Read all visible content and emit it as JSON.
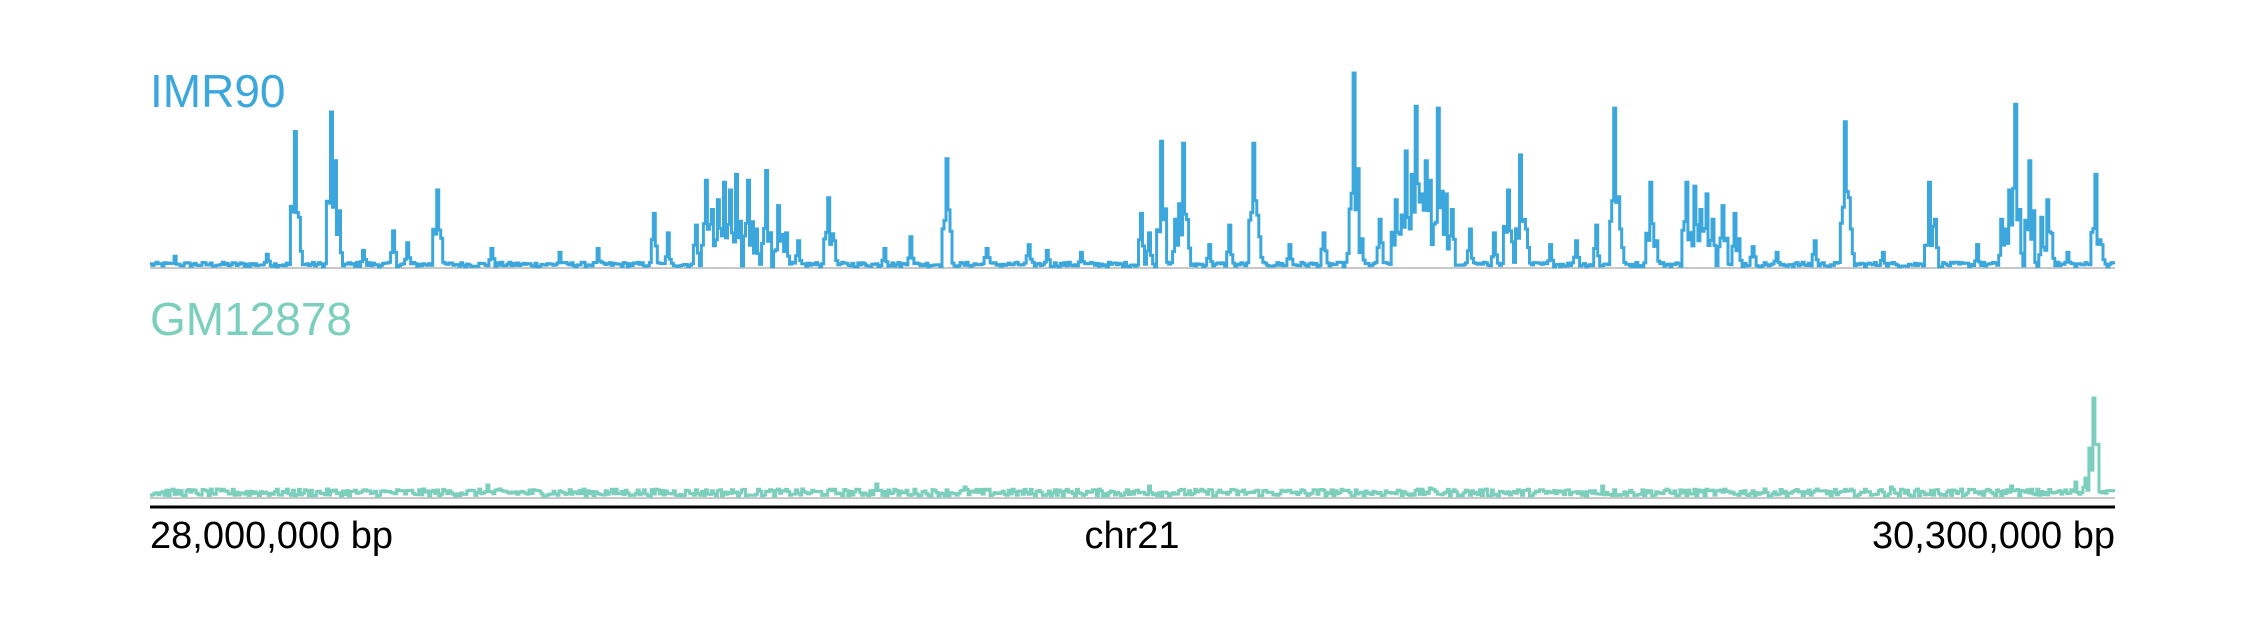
{
  "chart_data": {
    "type": "line",
    "title": "",
    "chromosome": "chr21",
    "x_range_bp": [
      28000000,
      30300000
    ],
    "x_tick_labels": [
      "28,000,000 bp",
      "chr21",
      "30,300,000 bp"
    ],
    "grid": false,
    "tracks": [
      {
        "name": "IMR90",
        "color": "#3ba7dc",
        "baseline_color": "#c8c8c8",
        "y_max": 1.0,
        "background": 0.02,
        "peaks": [
          {
            "x": 28028000,
            "y": 0.06
          },
          {
            "x": 28136000,
            "y": 0.07
          },
          {
            "x": 28168000,
            "y": 0.7
          },
          {
            "x": 28175000,
            "y": 0.18
          },
          {
            "x": 28212000,
            "y": 0.8
          },
          {
            "x": 28215000,
            "y": 0.55
          },
          {
            "x": 28220000,
            "y": 0.25
          },
          {
            "x": 28250000,
            "y": 0.09
          },
          {
            "x": 28285000,
            "y": 0.19
          },
          {
            "x": 28300000,
            "y": 0.13
          },
          {
            "x": 28335000,
            "y": 0.4
          },
          {
            "x": 28400000,
            "y": 0.1
          },
          {
            "x": 28480000,
            "y": 0.08
          },
          {
            "x": 28525000,
            "y": 0.1
          },
          {
            "x": 28590000,
            "y": 0.28
          },
          {
            "x": 28605000,
            "y": 0.18
          },
          {
            "x": 28640000,
            "y": 0.22
          },
          {
            "x": 28650000,
            "y": 0.45
          },
          {
            "x": 28658000,
            "y": 0.3
          },
          {
            "x": 28666000,
            "y": 0.35
          },
          {
            "x": 28672000,
            "y": 0.44
          },
          {
            "x": 28680000,
            "y": 0.4
          },
          {
            "x": 28685000,
            "y": 0.48
          },
          {
            "x": 28700000,
            "y": 0.45
          },
          {
            "x": 28710000,
            "y": 0.2
          },
          {
            "x": 28722000,
            "y": 0.5
          },
          {
            "x": 28735000,
            "y": 0.32
          },
          {
            "x": 28745000,
            "y": 0.18
          },
          {
            "x": 28760000,
            "y": 0.14
          },
          {
            "x": 28795000,
            "y": 0.36
          },
          {
            "x": 28800000,
            "y": 0.14
          },
          {
            "x": 28860000,
            "y": 0.1
          },
          {
            "x": 28890000,
            "y": 0.16
          },
          {
            "x": 28932000,
            "y": 0.56
          },
          {
            "x": 28980000,
            "y": 0.1
          },
          {
            "x": 29030000,
            "y": 0.12
          },
          {
            "x": 29050000,
            "y": 0.09
          },
          {
            "x": 29090000,
            "y": 0.08
          },
          {
            "x": 29160000,
            "y": 0.28
          },
          {
            "x": 29170000,
            "y": 0.18
          },
          {
            "x": 29185000,
            "y": 0.65
          },
          {
            "x": 29200000,
            "y": 0.25
          },
          {
            "x": 29209000,
            "y": 0.64
          },
          {
            "x": 29215000,
            "y": 0.2
          },
          {
            "x": 29240000,
            "y": 0.12
          },
          {
            "x": 29265000,
            "y": 0.22
          },
          {
            "x": 29292000,
            "y": 0.64
          },
          {
            "x": 29300000,
            "y": 0.16
          },
          {
            "x": 29335000,
            "y": 0.12
          },
          {
            "x": 29375000,
            "y": 0.18
          },
          {
            "x": 29405000,
            "y": 0.2
          },
          {
            "x": 29410000,
            "y": 1.0
          },
          {
            "x": 29420000,
            "y": 0.15
          },
          {
            "x": 29440000,
            "y": 0.25
          },
          {
            "x": 29460000,
            "y": 0.35
          },
          {
            "x": 29470000,
            "y": 0.6
          },
          {
            "x": 29478000,
            "y": 0.48
          },
          {
            "x": 29483000,
            "y": 0.83
          },
          {
            "x": 29490000,
            "y": 0.38
          },
          {
            "x": 29495000,
            "y": 0.55
          },
          {
            "x": 29500000,
            "y": 0.45
          },
          {
            "x": 29508000,
            "y": 0.82
          },
          {
            "x": 29518000,
            "y": 0.38
          },
          {
            "x": 29525000,
            "y": 0.3
          },
          {
            "x": 29545000,
            "y": 0.2
          },
          {
            "x": 29575000,
            "y": 0.18
          },
          {
            "x": 29590000,
            "y": 0.4
          },
          {
            "x": 29605000,
            "y": 0.58
          },
          {
            "x": 29612000,
            "y": 0.2
          },
          {
            "x": 29640000,
            "y": 0.12
          },
          {
            "x": 29670000,
            "y": 0.14
          },
          {
            "x": 29695000,
            "y": 0.22
          },
          {
            "x": 29715000,
            "y": 0.82
          },
          {
            "x": 29722000,
            "y": 0.2
          },
          {
            "x": 29760000,
            "y": 0.2
          },
          {
            "x": 29765000,
            "y": 0.14
          },
          {
            "x": 29757000,
            "y": 0.44
          },
          {
            "x": 29800000,
            "y": 0.44
          },
          {
            "x": 29808000,
            "y": 0.42
          },
          {
            "x": 29815000,
            "y": 0.3
          },
          {
            "x": 29822000,
            "y": 0.38
          },
          {
            "x": 29830000,
            "y": 0.25
          },
          {
            "x": 29842000,
            "y": 0.32
          },
          {
            "x": 29855000,
            "y": 0.28
          },
          {
            "x": 29860000,
            "y": 0.15
          },
          {
            "x": 29878000,
            "y": 0.11
          },
          {
            "x": 29905000,
            "y": 0.08
          },
          {
            "x": 29950000,
            "y": 0.14
          },
          {
            "x": 29985000,
            "y": 0.75
          },
          {
            "x": 29992000,
            "y": 0.2
          },
          {
            "x": 30030000,
            "y": 0.08
          },
          {
            "x": 30085000,
            "y": 0.44
          },
          {
            "x": 30092000,
            "y": 0.25
          },
          {
            "x": 30140000,
            "y": 0.12
          },
          {
            "x": 30168000,
            "y": 0.25
          },
          {
            "x": 30178000,
            "y": 0.4
          },
          {
            "x": 30185000,
            "y": 0.84
          },
          {
            "x": 30190000,
            "y": 0.3
          },
          {
            "x": 30202000,
            "y": 0.55
          },
          {
            "x": 30215000,
            "y": 0.26
          },
          {
            "x": 30222000,
            "y": 0.35
          },
          {
            "x": 30226000,
            "y": 0.12
          },
          {
            "x": 30245000,
            "y": 0.08
          },
          {
            "x": 30278000,
            "y": 0.48
          },
          {
            "x": 30285000,
            "y": 0.12
          }
        ]
      },
      {
        "name": "GM12878",
        "color": "#7ccfbd",
        "baseline_color": "#c8c8c8",
        "y_max": 1.0,
        "background": 0.06,
        "peaks": [
          {
            "x": 28395000,
            "y": 0.13
          },
          {
            "x": 28850000,
            "y": 0.14
          },
          {
            "x": 28955000,
            "y": 0.11
          },
          {
            "x": 29170000,
            "y": 0.12
          },
          {
            "x": 29500000,
            "y": 0.1
          },
          {
            "x": 29700000,
            "y": 0.12
          },
          {
            "x": 30040000,
            "y": 0.11
          },
          {
            "x": 30180000,
            "y": 0.12
          },
          {
            "x": 30255000,
            "y": 0.16
          },
          {
            "x": 30268000,
            "y": 0.2
          },
          {
            "x": 30276000,
            "y": 1.0
          },
          {
            "x": 30282000,
            "y": 0.14
          }
        ]
      }
    ]
  }
}
